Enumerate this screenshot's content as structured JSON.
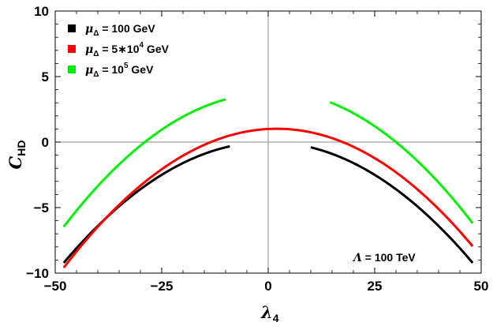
{
  "chart_data": {
    "type": "line",
    "title": "",
    "xlabel": "λ",
    "xlabel_sub": "4",
    "ylabel": "C",
    "ylabel_sub": "HD",
    "xlim": [
      -50,
      50
    ],
    "ylim": [
      -10,
      10
    ],
    "xticks": [
      -50,
      -25,
      0,
      25,
      50
    ],
    "xtick_labels": [
      "−50",
      "−25",
      "0",
      "25",
      "50"
    ],
    "yticks": [
      -10,
      -5,
      0,
      5,
      10
    ],
    "ytick_labels": [
      "−10",
      "−5",
      "0",
      "5",
      "10"
    ],
    "grid": false,
    "legend_position": "top-left",
    "annotation": {
      "prefix": "Λ",
      "text": " = 100 TeV"
    },
    "series": [
      {
        "name": "μΔ = 100 GeV",
        "legend_mu": "μ",
        "legend_sub": "Δ",
        "legend_value": " = 100 GeV",
        "legend_sup": "",
        "legend_tail": "",
        "color": "#000000",
        "segments": [
          {
            "x_start": -48,
            "x_end": -9,
            "a": -0.004,
            "b": 0.0,
            "c": 0.0
          },
          {
            "x_start": 10,
            "x_end": 48,
            "a": -0.004,
            "b": 0.0,
            "c": 0.0
          }
        ]
      },
      {
        "name": "μΔ = 5*10^4 GeV",
        "legend_mu": "μ",
        "legend_sub": "Δ",
        "legend_value": " =  5∗10",
        "legend_sup": "4",
        "legend_tail": " GeV",
        "color": "#ff0000",
        "segments": [
          {
            "x_start": -48,
            "x_end": 48,
            "a": -0.00424,
            "b": 0.017,
            "c": 1.0
          }
        ]
      },
      {
        "name": "μΔ = 10^5 GeV",
        "legend_mu": "μ",
        "legend_sub": "Δ",
        "legend_value": " = 10",
        "legend_sup": "5",
        "legend_tail": " GeV",
        "color": "#00ee00",
        "segments": [
          {
            "x_start": -48,
            "x_end": -10,
            "a": -0.00441,
            "b": 0.0,
            "c": 3.7
          },
          {
            "x_start": 14.5,
            "x_end": 48,
            "a": -0.00441,
            "b": 0.0,
            "c": 3.97
          }
        ]
      }
    ]
  }
}
